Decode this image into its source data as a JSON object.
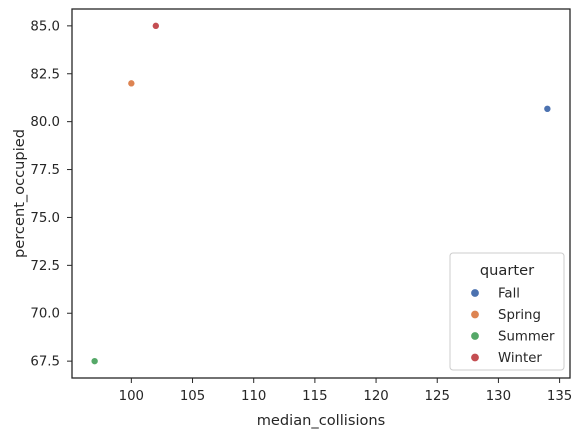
{
  "chart_data": {
    "type": "scatter",
    "title": "",
    "xlabel": "median_collisions",
    "ylabel": "percent_occupied",
    "xlim": [
      95.15,
      135.85
    ],
    "ylim": [
      66.62,
      85.88
    ],
    "xticks": [
      "100",
      "105",
      "110",
      "115",
      "120",
      "125",
      "130",
      "135"
    ],
    "yticks": [
      "67.5",
      "70.0",
      "72.5",
      "75.0",
      "77.5",
      "80.0",
      "82.5",
      "85.0"
    ],
    "grid": false,
    "legend": {
      "title": "quarter",
      "placement": "lower-right",
      "entries": [
        "Fall",
        "Spring",
        "Summer",
        "Winter"
      ]
    },
    "colors": {
      "Fall": "#4c72b0",
      "Spring": "#dd8452",
      "Summer": "#55a868",
      "Winter": "#c44e52"
    },
    "series": [
      {
        "name": "Fall",
        "points": [
          {
            "x": 134,
            "y": 80.67
          }
        ]
      },
      {
        "name": "Spring",
        "points": [
          {
            "x": 100,
            "y": 82.0
          }
        ]
      },
      {
        "name": "Summer",
        "points": [
          {
            "x": 97,
            "y": 67.5
          }
        ]
      },
      {
        "name": "Winter",
        "points": [
          {
            "x": 102,
            "y": 85.0
          }
        ]
      }
    ]
  }
}
